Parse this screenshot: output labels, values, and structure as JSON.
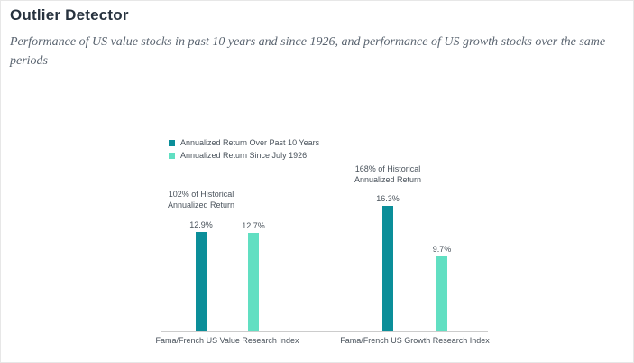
{
  "header": {
    "title": "Outlier Detector",
    "subtitle": "Performance of US value stocks in past 10 years and since 1926, and performance of US growth stocks over the same periods"
  },
  "colors": {
    "heading": "#27323e",
    "subtitle": "#5a6470",
    "label": "#49525b",
    "axis": "#cccccc",
    "series1": "#0b8e99",
    "series2": "#61dfc2"
  },
  "chart_data": {
    "type": "bar",
    "title": "Outlier Detector",
    "categories": [
      "Fama/French US Value Research Index",
      "Fama/French US Growth Research Index"
    ],
    "series": [
      {
        "name": "Annualized Return Over Past 10 Years",
        "color": "#0b8e99",
        "values": [
          12.9,
          16.3
        ],
        "labels": [
          "12.9%",
          "16.3%"
        ]
      },
      {
        "name": "Annualized Return Since July 1926",
        "color": "#61dfc2",
        "values": [
          12.7,
          9.7
        ],
        "labels": [
          "12.7%",
          "9.7%"
        ]
      }
    ],
    "annotations": [
      {
        "line1": "102% of Historical",
        "line2": "Annualized Return",
        "anchor_category": 0
      },
      {
        "line1": "168% of Historical",
        "line2": "Annualized Return",
        "anchor_category": 1
      }
    ],
    "unit": "%",
    "ylim": [
      0,
      18
    ],
    "grid": false,
    "legend_position": "top-left",
    "y_axis_shown": false
  }
}
